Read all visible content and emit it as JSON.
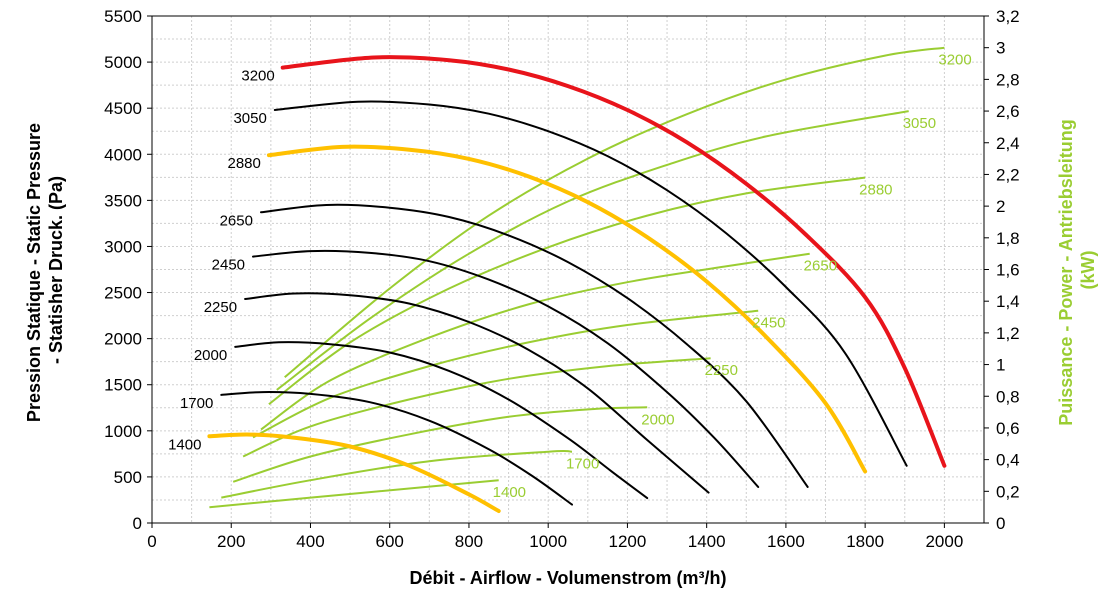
{
  "chart_data": {
    "type": "line",
    "xlabel": "Débit - Airflow - Volumenstrom (m³/h)",
    "ylabel_left": "Pression Statique - Static Pressure - Statisher Druck. (Pa)",
    "ylabel_left_line1": "Pression Statique - Static Pressure",
    "ylabel_left_line2": "- Statisher Druck. (Pa)",
    "ylabel_right": "Puissance - Power - Antriebsleitung (kW)",
    "ylabel_right_line1": "Puissance - Power - Antriebsleitung",
    "ylabel_right_line2": "(kW)",
    "xlim": [
      0,
      2100
    ],
    "ylim_left": [
      0,
      5500
    ],
    "ylim_right": [
      0,
      3.2
    ],
    "x_ticks": [
      "0",
      "200",
      "400",
      "600",
      "800",
      "1000",
      "1200",
      "1400",
      "1600",
      "1800",
      "2000"
    ],
    "y_left_ticks": [
      "0",
      "500",
      "1000",
      "1500",
      "2000",
      "2500",
      "3000",
      "3500",
      "4000",
      "4500",
      "5000",
      "5500"
    ],
    "y_right_ticks": [
      "0",
      "0,2",
      "0,4",
      "0,6",
      "0,8",
      "1",
      "1,2",
      "1,4",
      "1,6",
      "1,8",
      "2",
      "2,2",
      "2,4",
      "2,6",
      "2,8",
      "3",
      "3,2"
    ],
    "grid": true,
    "colors": {
      "pressure_default": "#000000",
      "pressure_highlight_yellow": "#FFC000",
      "pressure_highlight_red": "#E8141B",
      "power": "#9ACD32",
      "right_axis_title": "#9ACD32"
    },
    "pressure_series": [
      {
        "name": "1400",
        "color": "#FFC000",
        "width": 4,
        "points": [
          [
            145,
            940
          ],
          [
            240,
            960
          ],
          [
            350,
            930
          ],
          [
            500,
            830
          ],
          [
            650,
            620
          ],
          [
            800,
            310
          ],
          [
            875,
            130
          ]
        ]
      },
      {
        "name": "1700",
        "color": "#000000",
        "width": 2,
        "points": [
          [
            175,
            1390
          ],
          [
            280,
            1420
          ],
          [
            400,
            1400
          ],
          [
            550,
            1310
          ],
          [
            700,
            1110
          ],
          [
            850,
            800
          ],
          [
            960,
            510
          ],
          [
            1060,
            200
          ]
        ]
      },
      {
        "name": "2000",
        "color": "#000000",
        "width": 2,
        "points": [
          [
            210,
            1910
          ],
          [
            320,
            1960
          ],
          [
            450,
            1940
          ],
          [
            600,
            1850
          ],
          [
            750,
            1650
          ],
          [
            900,
            1340
          ],
          [
            1050,
            920
          ],
          [
            1160,
            560
          ],
          [
            1250,
            270
          ]
        ]
      },
      {
        "name": "2250",
        "color": "#000000",
        "width": 2,
        "points": [
          [
            235,
            2430
          ],
          [
            360,
            2490
          ],
          [
            500,
            2470
          ],
          [
            650,
            2380
          ],
          [
            800,
            2180
          ],
          [
            950,
            1880
          ],
          [
            1100,
            1460
          ],
          [
            1250,
            900
          ],
          [
            1405,
            330
          ]
        ]
      },
      {
        "name": "2450",
        "color": "#000000",
        "width": 2,
        "points": [
          [
            255,
            2890
          ],
          [
            400,
            2950
          ],
          [
            550,
            2930
          ],
          [
            700,
            2840
          ],
          [
            850,
            2640
          ],
          [
            1000,
            2350
          ],
          [
            1150,
            1950
          ],
          [
            1300,
            1420
          ],
          [
            1420,
            920
          ],
          [
            1530,
            390
          ]
        ]
      },
      {
        "name": "2650",
        "color": "#000000",
        "width": 2,
        "points": [
          [
            275,
            3370
          ],
          [
            440,
            3450
          ],
          [
            600,
            3420
          ],
          [
            750,
            3320
          ],
          [
            900,
            3120
          ],
          [
            1050,
            2830
          ],
          [
            1200,
            2440
          ],
          [
            1350,
            1940
          ],
          [
            1500,
            1320
          ],
          [
            1655,
            390
          ]
        ]
      },
      {
        "name": "2880",
        "color": "#FFC000",
        "width": 4,
        "points": [
          [
            295,
            3990
          ],
          [
            480,
            4080
          ],
          [
            650,
            4050
          ],
          [
            800,
            3950
          ],
          [
            950,
            3760
          ],
          [
            1100,
            3480
          ],
          [
            1250,
            3100
          ],
          [
            1400,
            2620
          ],
          [
            1550,
            2020
          ],
          [
            1700,
            1300
          ],
          [
            1800,
            560
          ]
        ]
      },
      {
        "name": "3050",
        "color": "#000000",
        "width": 2,
        "points": [
          [
            310,
            4480
          ],
          [
            520,
            4570
          ],
          [
            700,
            4540
          ],
          [
            850,
            4440
          ],
          [
            1000,
            4250
          ],
          [
            1150,
            3980
          ],
          [
            1300,
            3610
          ],
          [
            1450,
            3140
          ],
          [
            1600,
            2560
          ],
          [
            1750,
            1840
          ],
          [
            1905,
            620
          ]
        ]
      },
      {
        "name": "3200",
        "color": "#E8141B",
        "width": 4,
        "points": [
          [
            330,
            4940
          ],
          [
            560,
            5050
          ],
          [
            750,
            5020
          ],
          [
            900,
            4920
          ],
          [
            1050,
            4740
          ],
          [
            1200,
            4480
          ],
          [
            1350,
            4130
          ],
          [
            1500,
            3680
          ],
          [
            1650,
            3130
          ],
          [
            1800,
            2450
          ],
          [
            1900,
            1680
          ],
          [
            2000,
            620
          ]
        ]
      }
    ],
    "power_series": [
      {
        "name": "1400",
        "points": [
          [
            145,
            0.1
          ],
          [
            400,
            0.16
          ],
          [
            700,
            0.23
          ],
          [
            875,
            0.27
          ]
        ]
      },
      {
        "name": "1700",
        "points": [
          [
            175,
            0.16
          ],
          [
            400,
            0.27
          ],
          [
            700,
            0.39
          ],
          [
            1000,
            0.45
          ],
          [
            1060,
            0.45
          ]
        ]
      },
      {
        "name": "2000",
        "points": [
          [
            205,
            0.26
          ],
          [
            400,
            0.42
          ],
          [
            650,
            0.56
          ],
          [
            900,
            0.67
          ],
          [
            1120,
            0.72
          ],
          [
            1250,
            0.73
          ]
        ]
      },
      {
        "name": "2250",
        "points": [
          [
            230,
            0.42
          ],
          [
            400,
            0.61
          ],
          [
            650,
            0.78
          ],
          [
            900,
            0.91
          ],
          [
            1150,
            0.99
          ],
          [
            1410,
            1.04
          ]
        ]
      },
      {
        "name": "2450",
        "points": [
          [
            255,
            0.54
          ],
          [
            450,
            0.79
          ],
          [
            700,
            0.99
          ],
          [
            950,
            1.14
          ],
          [
            1200,
            1.25
          ],
          [
            1530,
            1.34
          ]
        ]
      },
      {
        "name": "2650",
        "points": [
          [
            275,
            0.59
          ],
          [
            450,
            0.9
          ],
          [
            700,
            1.17
          ],
          [
            950,
            1.38
          ],
          [
            1200,
            1.52
          ],
          [
            1450,
            1.62
          ],
          [
            1660,
            1.7
          ]
        ]
      },
      {
        "name": "2880",
        "points": [
          [
            295,
            0.75
          ],
          [
            500,
            1.14
          ],
          [
            750,
            1.48
          ],
          [
            1000,
            1.74
          ],
          [
            1250,
            1.94
          ],
          [
            1500,
            2.08
          ],
          [
            1800,
            2.18
          ]
        ]
      },
      {
        "name": "3050",
        "points": [
          [
            315,
            0.84
          ],
          [
            550,
            1.29
          ],
          [
            800,
            1.7
          ],
          [
            1050,
            2.03
          ],
          [
            1300,
            2.26
          ],
          [
            1550,
            2.44
          ],
          [
            1910,
            2.6
          ]
        ]
      },
      {
        "name": "3200",
        "points": [
          [
            335,
            0.92
          ],
          [
            600,
            1.48
          ],
          [
            850,
            1.94
          ],
          [
            1100,
            2.3
          ],
          [
            1350,
            2.58
          ],
          [
            1600,
            2.8
          ],
          [
            1850,
            2.95
          ],
          [
            2000,
            3.0
          ]
        ]
      }
    ]
  }
}
